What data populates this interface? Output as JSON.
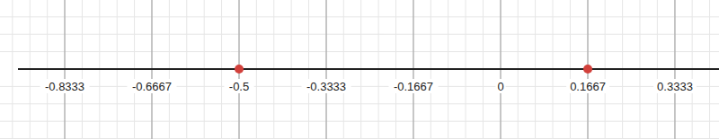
{
  "chart_data": {
    "type": "scatter",
    "x": [
      -0.5,
      0.1667
    ],
    "color": "#d2413c",
    "xlim": [
      -0.9227,
      0.4175
    ],
    "xticks": [
      -0.8333,
      -0.6667,
      -0.5,
      -0.3333,
      -0.1667,
      0,
      0.1667,
      0.3333
    ],
    "grid": true,
    "tick_labels": "x"
  }
}
